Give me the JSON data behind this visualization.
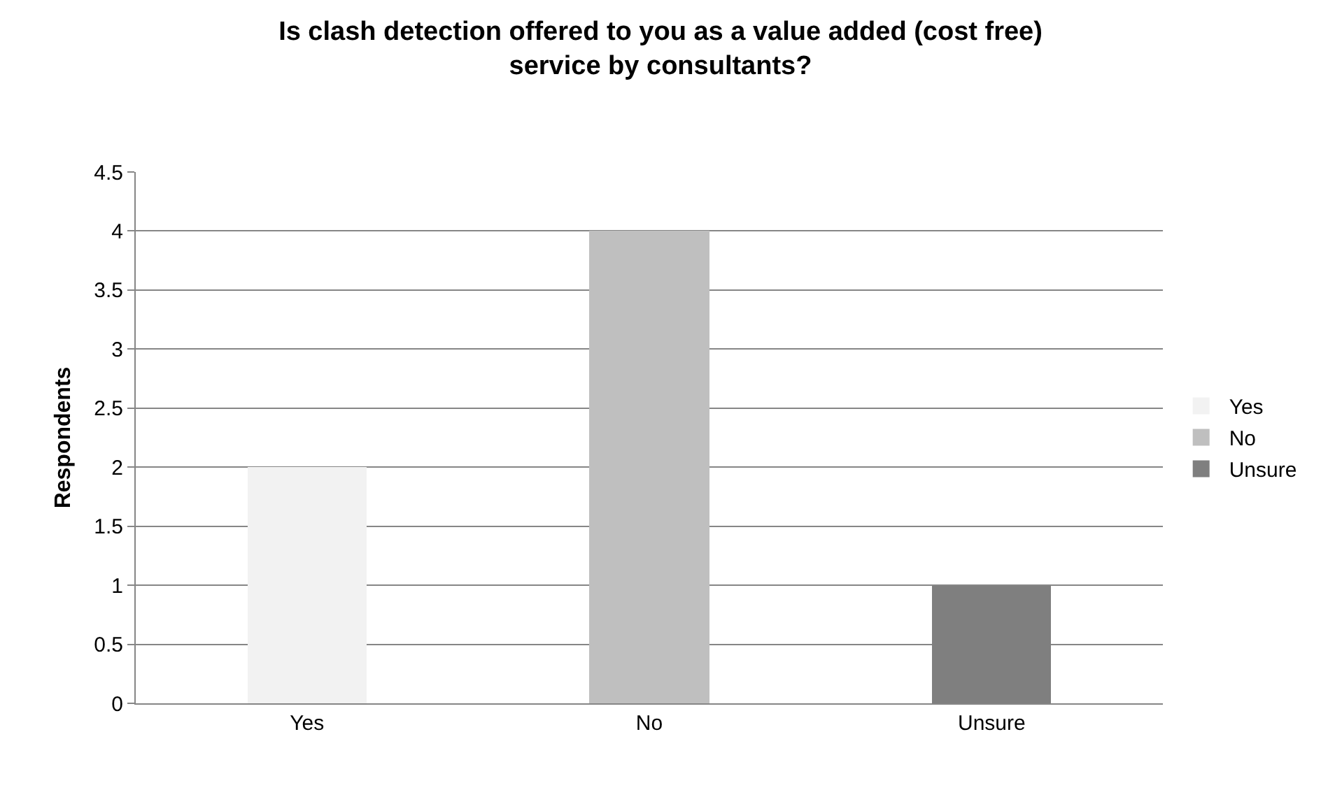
{
  "chart_data": {
    "type": "bar",
    "title": "Is clash detection offered to you as a value added (cost free) service by consultants?",
    "ylabel": "Respondents",
    "categories": [
      "Yes",
      "No",
      "Unsure"
    ],
    "series": [
      {
        "name": "Yes",
        "color": "#f2f2f2",
        "values": [
          2,
          null,
          null
        ]
      },
      {
        "name": "No",
        "color": "#bfbfbf",
        "values": [
          null,
          4,
          null
        ]
      },
      {
        "name": "Unsure",
        "color": "#7f7f7f",
        "values": [
          null,
          null,
          1
        ]
      }
    ],
    "ylim": [
      0,
      4.5
    ],
    "yticks": [
      0,
      0.5,
      1,
      1.5,
      2,
      2.5,
      3,
      3.5,
      4,
      4.5
    ],
    "grid": "y",
    "legend": "right"
  }
}
